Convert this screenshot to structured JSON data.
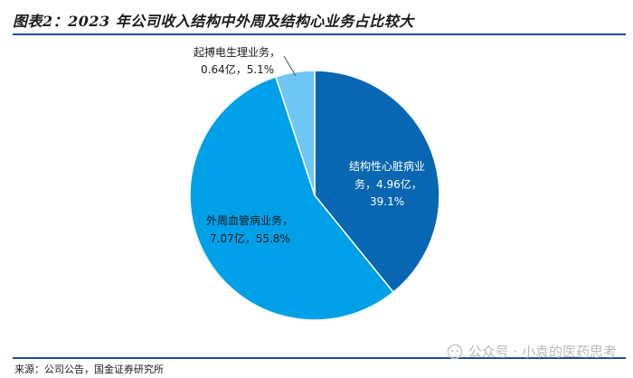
{
  "title": "图表2：2023 年公司收入结构中外周及结构心业务占比较大",
  "source": "来源：公司公告，国金证券研究所",
  "watermark": "公众号 · 小袁的医药思考",
  "chart_data": {
    "type": "pie",
    "slices": [
      {
        "label_line1": "结构性心脏病业",
        "label_line2": "务，4.96亿，",
        "label_line3": "39.1%",
        "value": 4.96,
        "percent": 39.1,
        "color": "#0866b3"
      },
      {
        "label_line1": "外周血管病业务，",
        "label_line2": "7.07亿，55.8%",
        "label_line3": "",
        "value": 7.07,
        "percent": 55.8,
        "color": "#00a0e9"
      },
      {
        "label_line1": "起搏电生理业务，",
        "label_line2": "0.64亿，5.1%",
        "label_line3": "",
        "value": 0.64,
        "percent": 5.1,
        "color": "#6ec6f5"
      }
    ]
  }
}
